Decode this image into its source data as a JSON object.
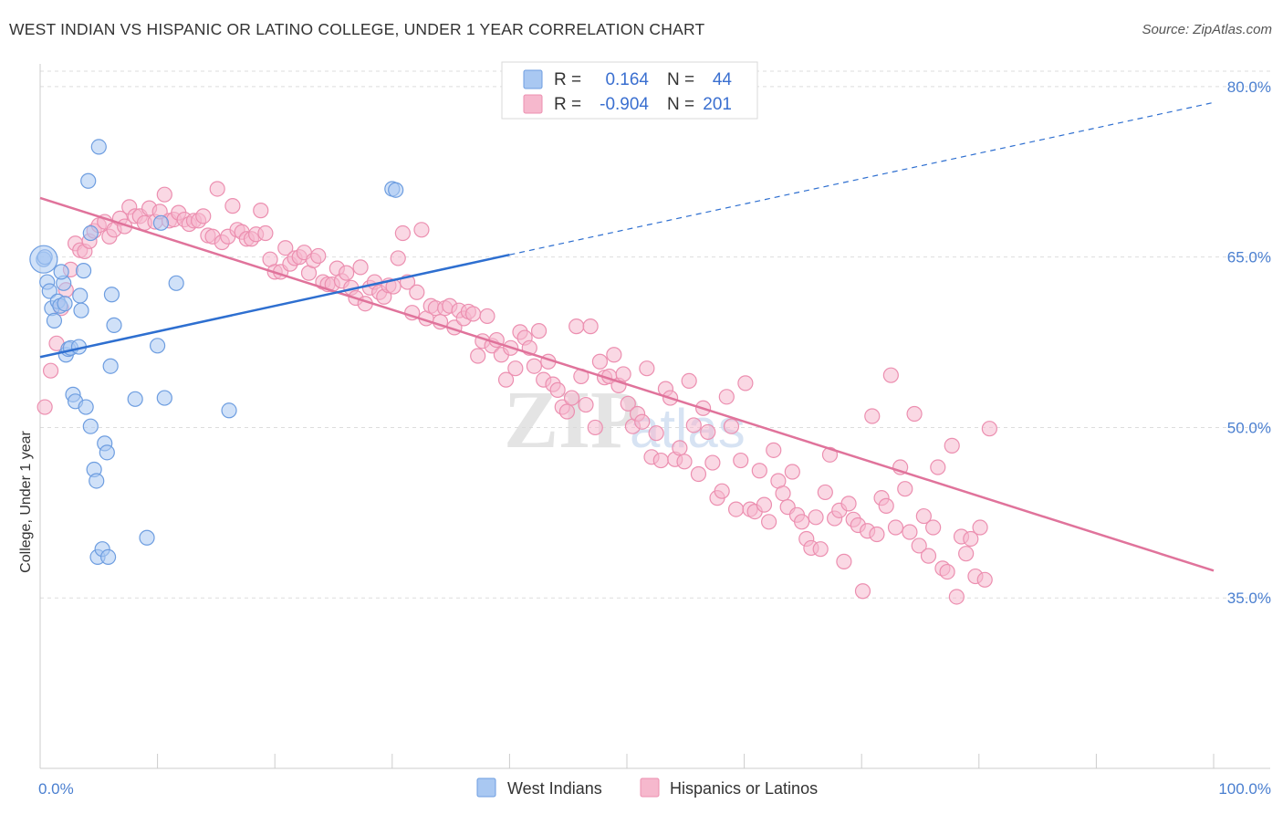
{
  "title": "WEST INDIAN VS HISPANIC OR LATINO COLLEGE, UNDER 1 YEAR CORRELATION CHART",
  "source": "Source: ZipAtlas.com",
  "watermark": "ZIPatlas",
  "colors": {
    "blue_fill": "#a9c8f2",
    "blue_stroke": "#6d9de0",
    "blue_line": "#2e6fd0",
    "pink_fill": "#f6b8cd",
    "pink_stroke": "#ec8fb0",
    "pink_line": "#e0739b",
    "axis_text": "#4a7fd0",
    "grid": "#dddddd"
  },
  "legend": {
    "rows": [
      {
        "r_label": "R =",
        "r_value": "0.164",
        "n_label": "N =",
        "n_value": "44"
      },
      {
        "r_label": "R =",
        "r_value": "-0.904",
        "n_label": "N =",
        "n_value": "201"
      }
    ]
  },
  "bottom_legend": [
    "West Indians",
    "Hispanics or Latinos"
  ],
  "chart_data": {
    "type": "scatter",
    "xlabel": "",
    "ylabel": "College, Under 1 year",
    "xlim": [
      0,
      100
    ],
    "ylim": [
      20,
      82
    ],
    "x_tick_labels": [
      "0.0%",
      "100.0%"
    ],
    "y_ticks": [
      35,
      50,
      65,
      80
    ],
    "y_tick_labels": [
      "35.0%",
      "50.0%",
      "65.0%",
      "80.0%"
    ],
    "grid": true,
    "series": [
      {
        "name": "West Indians",
        "color": "blue",
        "points": [
          [
            0.3,
            64.8
          ],
          [
            0.6,
            62.8
          ],
          [
            0.8,
            62.0
          ],
          [
            1.0,
            60.5
          ],
          [
            1.2,
            59.4
          ],
          [
            1.5,
            61.1
          ],
          [
            1.7,
            60.7
          ],
          [
            2.0,
            62.7
          ],
          [
            2.2,
            56.4
          ],
          [
            2.4,
            56.9
          ],
          [
            2.6,
            57.0
          ],
          [
            2.8,
            52.9
          ],
          [
            3.0,
            52.3
          ],
          [
            3.3,
            57.1
          ],
          [
            3.5,
            60.3
          ],
          [
            3.7,
            63.8
          ],
          [
            3.9,
            51.8
          ],
          [
            4.1,
            71.7
          ],
          [
            4.3,
            50.1
          ],
          [
            4.6,
            46.3
          ],
          [
            4.8,
            45.3
          ],
          [
            4.3,
            67.1
          ],
          [
            5.0,
            74.7
          ],
          [
            5.5,
            48.6
          ],
          [
            5.7,
            47.8
          ],
          [
            4.9,
            38.6
          ],
          [
            5.3,
            39.3
          ],
          [
            5.8,
            38.6
          ],
          [
            6.0,
            55.4
          ],
          [
            6.1,
            61.7
          ],
          [
            6.3,
            59.0
          ],
          [
            8.1,
            52.5
          ],
          [
            9.1,
            40.3
          ],
          [
            10.0,
            57.2
          ],
          [
            10.3,
            68.0
          ],
          [
            10.6,
            52.6
          ],
          [
            11.6,
            62.7
          ],
          [
            16.1,
            51.5
          ],
          [
            30.0,
            71.0
          ],
          [
            30.3,
            70.9
          ],
          [
            1.8,
            63.7
          ],
          [
            0.4,
            65.0
          ],
          [
            2.1,
            60.9
          ],
          [
            3.4,
            61.6
          ]
        ],
        "trend": {
          "x": [
            0,
            40
          ],
          "y": [
            56.2,
            65.2
          ]
        },
        "trend_dashed": {
          "x": [
            40,
            100
          ],
          "y": [
            65.2,
            78.6
          ]
        }
      },
      {
        "name": "Hispanics or Latinos",
        "color": "pink",
        "points": [
          [
            0.4,
            51.8
          ],
          [
            0.9,
            55.0
          ],
          [
            1.4,
            57.4
          ],
          [
            1.8,
            60.5
          ],
          [
            2.2,
            62.1
          ],
          [
            2.6,
            63.9
          ],
          [
            3.0,
            66.2
          ],
          [
            3.4,
            65.6
          ],
          [
            3.8,
            65.5
          ],
          [
            4.2,
            66.4
          ],
          [
            4.6,
            67.3
          ],
          [
            5.0,
            67.8
          ],
          [
            5.5,
            68.1
          ],
          [
            5.9,
            66.8
          ],
          [
            6.3,
            67.4
          ],
          [
            6.8,
            68.4
          ],
          [
            7.2,
            67.7
          ],
          [
            7.6,
            69.4
          ],
          [
            8.1,
            68.6
          ],
          [
            8.5,
            68.6
          ],
          [
            8.9,
            68.0
          ],
          [
            9.3,
            69.3
          ],
          [
            9.8,
            68.1
          ],
          [
            10.2,
            69.0
          ],
          [
            10.6,
            70.5
          ],
          [
            11.0,
            68.2
          ],
          [
            11.4,
            68.3
          ],
          [
            11.8,
            68.9
          ],
          [
            12.3,
            68.3
          ],
          [
            12.7,
            67.9
          ],
          [
            13.1,
            68.2
          ],
          [
            13.5,
            68.2
          ],
          [
            13.9,
            68.6
          ],
          [
            14.3,
            66.9
          ],
          [
            14.7,
            66.8
          ],
          [
            15.1,
            71.0
          ],
          [
            15.5,
            66.3
          ],
          [
            16.0,
            66.8
          ],
          [
            16.4,
            69.5
          ],
          [
            16.8,
            67.4
          ],
          [
            17.2,
            67.2
          ],
          [
            17.6,
            66.6
          ],
          [
            18.0,
            66.6
          ],
          [
            18.4,
            67.0
          ],
          [
            18.8,
            69.1
          ],
          [
            19.2,
            67.1
          ],
          [
            19.6,
            64.8
          ],
          [
            20.0,
            63.7
          ],
          [
            20.5,
            63.7
          ],
          [
            20.9,
            65.8
          ],
          [
            21.3,
            64.4
          ],
          [
            21.7,
            64.9
          ],
          [
            22.1,
            65.0
          ],
          [
            22.5,
            65.4
          ],
          [
            22.9,
            63.6
          ],
          [
            23.3,
            64.7
          ],
          [
            23.7,
            65.1
          ],
          [
            24.1,
            62.8
          ],
          [
            24.5,
            62.6
          ],
          [
            24.9,
            62.6
          ],
          [
            25.3,
            64.0
          ],
          [
            25.7,
            62.9
          ],
          [
            26.1,
            63.6
          ],
          [
            26.5,
            62.3
          ],
          [
            26.9,
            61.4
          ],
          [
            27.3,
            64.1
          ],
          [
            27.7,
            60.9
          ],
          [
            28.1,
            62.3
          ],
          [
            28.5,
            62.8
          ],
          [
            28.9,
            61.9
          ],
          [
            29.3,
            61.5
          ],
          [
            29.7,
            62.5
          ],
          [
            30.1,
            62.4
          ],
          [
            30.5,
            64.9
          ],
          [
            30.9,
            67.1
          ],
          [
            31.3,
            62.8
          ],
          [
            31.7,
            60.1
          ],
          [
            32.1,
            61.9
          ],
          [
            32.5,
            67.4
          ],
          [
            32.9,
            59.6
          ],
          [
            33.3,
            60.7
          ],
          [
            33.7,
            60.5
          ],
          [
            34.1,
            59.3
          ],
          [
            34.5,
            60.5
          ],
          [
            34.9,
            60.7
          ],
          [
            35.3,
            58.8
          ],
          [
            35.7,
            60.3
          ],
          [
            36.1,
            59.6
          ],
          [
            36.5,
            60.2
          ],
          [
            36.9,
            60.0
          ],
          [
            37.3,
            56.3
          ],
          [
            37.7,
            57.6
          ],
          [
            38.1,
            59.8
          ],
          [
            38.5,
            57.2
          ],
          [
            38.9,
            57.7
          ],
          [
            39.3,
            56.4
          ],
          [
            39.7,
            54.2
          ],
          [
            40.1,
            57.0
          ],
          [
            40.5,
            55.2
          ],
          [
            40.9,
            58.4
          ],
          [
            41.3,
            57.9
          ],
          [
            41.7,
            57.0
          ],
          [
            42.1,
            55.4
          ],
          [
            42.5,
            58.5
          ],
          [
            42.9,
            54.2
          ],
          [
            43.3,
            55.8
          ],
          [
            43.7,
            53.8
          ],
          [
            44.1,
            53.3
          ],
          [
            44.5,
            51.8
          ],
          [
            44.9,
            51.4
          ],
          [
            45.3,
            52.6
          ],
          [
            45.7,
            58.9
          ],
          [
            46.1,
            54.5
          ],
          [
            46.5,
            52.0
          ],
          [
            46.9,
            58.9
          ],
          [
            47.3,
            50.0
          ],
          [
            47.7,
            55.8
          ],
          [
            48.1,
            54.4
          ],
          [
            48.5,
            54.5
          ],
          [
            48.9,
            56.4
          ],
          [
            49.3,
            53.7
          ],
          [
            49.7,
            54.7
          ],
          [
            50.1,
            52.1
          ],
          [
            50.5,
            50.1
          ],
          [
            50.9,
            51.2
          ],
          [
            51.3,
            50.5
          ],
          [
            51.7,
            55.2
          ],
          [
            52.1,
            47.4
          ],
          [
            52.5,
            49.5
          ],
          [
            52.9,
            47.1
          ],
          [
            53.3,
            53.4
          ],
          [
            53.7,
            52.6
          ],
          [
            54.1,
            47.2
          ],
          [
            54.5,
            48.2
          ],
          [
            54.9,
            47.0
          ],
          [
            55.3,
            54.1
          ],
          [
            55.7,
            50.2
          ],
          [
            56.1,
            45.9
          ],
          [
            56.5,
            51.7
          ],
          [
            56.9,
            49.6
          ],
          [
            57.3,
            46.9
          ],
          [
            57.7,
            43.8
          ],
          [
            58.1,
            44.4
          ],
          [
            58.5,
            52.7
          ],
          [
            58.9,
            50.1
          ],
          [
            59.3,
            42.8
          ],
          [
            59.7,
            47.1
          ],
          [
            60.1,
            53.9
          ],
          [
            60.5,
            42.8
          ],
          [
            60.9,
            42.6
          ],
          [
            61.3,
            46.2
          ],
          [
            61.7,
            43.2
          ],
          [
            62.1,
            41.7
          ],
          [
            62.5,
            48.0
          ],
          [
            62.9,
            45.3
          ],
          [
            63.3,
            44.2
          ],
          [
            63.7,
            43.0
          ],
          [
            64.1,
            46.1
          ],
          [
            64.5,
            42.3
          ],
          [
            64.9,
            41.7
          ],
          [
            65.3,
            40.2
          ],
          [
            65.7,
            39.4
          ],
          [
            66.1,
            42.1
          ],
          [
            66.5,
            39.3
          ],
          [
            66.9,
            44.3
          ],
          [
            67.3,
            47.6
          ],
          [
            67.7,
            42.0
          ],
          [
            68.1,
            42.7
          ],
          [
            68.5,
            38.2
          ],
          [
            68.9,
            43.3
          ],
          [
            69.3,
            41.9
          ],
          [
            69.7,
            41.4
          ],
          [
            70.1,
            35.6
          ],
          [
            70.5,
            40.9
          ],
          [
            70.9,
            51.0
          ],
          [
            71.3,
            40.6
          ],
          [
            71.7,
            43.8
          ],
          [
            72.1,
            43.1
          ],
          [
            72.5,
            54.6
          ],
          [
            72.9,
            41.2
          ],
          [
            73.3,
            46.5
          ],
          [
            73.7,
            44.6
          ],
          [
            74.1,
            40.8
          ],
          [
            74.5,
            51.2
          ],
          [
            74.9,
            39.6
          ],
          [
            75.3,
            42.2
          ],
          [
            75.7,
            38.7
          ],
          [
            76.1,
            41.2
          ],
          [
            76.5,
            46.5
          ],
          [
            76.9,
            37.6
          ],
          [
            77.3,
            37.3
          ],
          [
            77.7,
            48.4
          ],
          [
            78.1,
            35.1
          ],
          [
            78.5,
            40.4
          ],
          [
            78.9,
            38.9
          ],
          [
            79.3,
            40.2
          ],
          [
            79.7,
            36.9
          ],
          [
            80.1,
            41.2
          ],
          [
            80.5,
            36.6
          ],
          [
            80.9,
            49.9
          ]
        ],
        "trend": {
          "x": [
            0,
            100
          ],
          "y": [
            70.2,
            37.4
          ]
        }
      }
    ]
  }
}
